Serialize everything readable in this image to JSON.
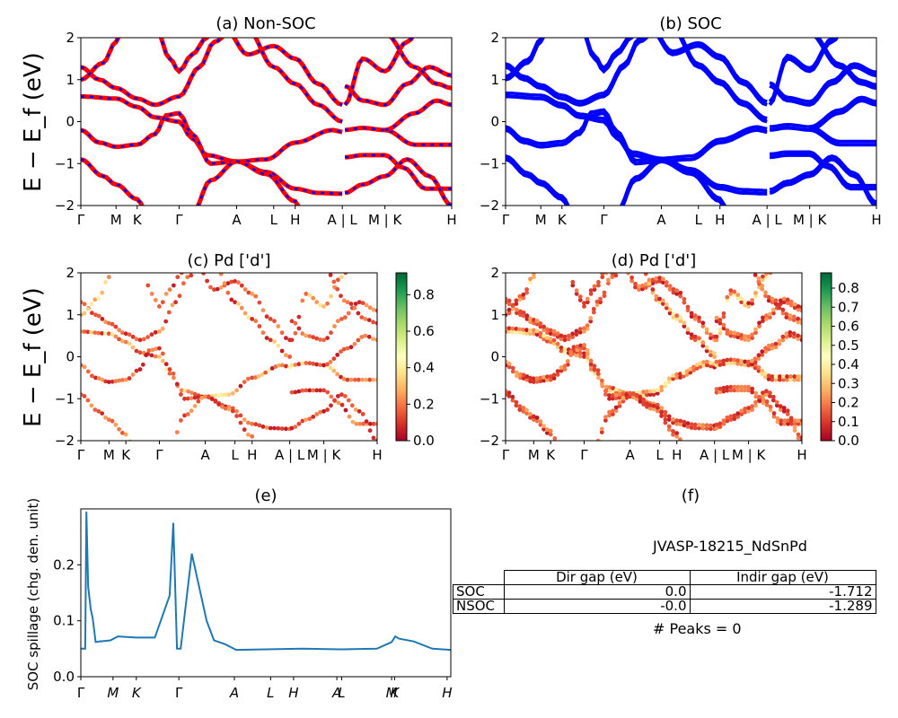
{
  "panels": {
    "a": {
      "title": "(a) Non-SOC"
    },
    "b": {
      "title": "(b) SOC"
    },
    "c": {
      "title": "(c)  Pd ['d']"
    },
    "d": {
      "title": "(d) Pd ['d']"
    },
    "e": {
      "title": "(e)"
    },
    "f": {
      "title": "(f)"
    }
  },
  "band_axis": {
    "ylabel": "E − E_f (eV)",
    "ylim": [
      -2,
      2
    ],
    "yticks": [
      "2",
      "1",
      "0",
      "−1",
      "−2"
    ],
    "kticks": [
      "Γ",
      "M",
      "K",
      "Γ",
      "A",
      "L",
      "H",
      "A | L",
      "M | K",
      "H"
    ]
  },
  "colorbars": {
    "c": {
      "ticks": [
        "0.8",
        "0.6",
        "0.4",
        "0.2",
        "0.0"
      ],
      "range": [
        0,
        0.92
      ]
    },
    "d": {
      "ticks": [
        "0.8",
        "0.7",
        "0.6",
        "0.5",
        "0.4",
        "0.3",
        "0.2",
        "0.1",
        "0.0"
      ],
      "range": [
        0,
        0.88
      ]
    }
  },
  "spillage": {
    "ylabel": "SOC spillage (chg. den. unit)",
    "yticks": [
      "0.2",
      "0.1",
      "0.0"
    ],
    "kticks": [
      "Γ",
      "M",
      "K",
      "Γ",
      "A",
      "L",
      "H",
      "A",
      "L",
      "M",
      "K",
      "H"
    ]
  },
  "info": {
    "jid": "JVASP-18215_NdSnPd",
    "headers": [
      "Dir gap (eV)",
      "Indir gap (eV)"
    ],
    "rows": [
      {
        "label": "SOC",
        "dir": "0.0",
        "indir": "-1.712"
      },
      {
        "label": "NSOC",
        "dir": "-0.0",
        "indir": "-1.289"
      }
    ],
    "peaks": "# Peaks = 0"
  },
  "colors": {
    "nonsoc_a": "#ff0000",
    "nonsoc_b": "#0000ff",
    "soc": "#0000ff",
    "spillage": "#1f77b4"
  },
  "chart_data": [
    {
      "type": "line",
      "title": "(a) Non-SOC",
      "xlabel": "",
      "ylabel": "E − E_f (eV)",
      "ylim": [
        -2,
        2
      ],
      "x_ticks": [
        "Γ",
        "M",
        "K",
        "Γ",
        "A",
        "L",
        "H",
        "A | L",
        "M | K",
        "H"
      ],
      "series": [
        {
          "values": [
            1.3,
            0.8,
            0.55,
            0.6,
            1.9,
            1.5,
            0.9,
            0.4,
            0.9,
            0.55
          ]
        },
        {
          "values": [
            0.6,
            0.55,
            0.35,
            0.0,
            -0.95,
            -0.9,
            -0.5,
            -0.2,
            -0.15,
            0.2
          ]
        },
        {
          "values": [
            -0.2,
            -0.6,
            -0.55,
            0.2,
            -0.95,
            -1.3,
            -1.6,
            -1.7,
            -1.55,
            -1.6
          ]
        }
      ]
    },
    {
      "type": "line",
      "title": "(b) SOC",
      "xlabel": "",
      "ylabel": "",
      "ylim": [
        -2,
        2
      ],
      "x_ticks": [
        "Γ",
        "M",
        "K",
        "Γ",
        "A",
        "L",
        "H",
        "A | L",
        "M | K",
        "H"
      ],
      "series": [
        {
          "values": [
            1.3,
            0.8,
            0.55,
            0.6,
            1.9,
            1.5,
            0.9,
            0.4,
            0.9,
            0.55
          ]
        },
        {
          "values": [
            0.6,
            0.55,
            0.35,
            0.0,
            -0.95,
            -0.9,
            -0.5,
            -0.2,
            -0.15,
            0.2
          ]
        },
        {
          "values": [
            -0.2,
            -0.6,
            -0.55,
            0.2,
            -0.95,
            -1.3,
            -1.6,
            -1.7,
            -1.55,
            -1.6
          ]
        }
      ]
    },
    {
      "type": "line",
      "title": "(e)",
      "ylabel": "SOC spillage (chg. den. unit)",
      "ylim": [
        0,
        0.3
      ],
      "x_ticks": [
        "Γ",
        "M",
        "K",
        "Γ",
        "A",
        "L",
        "H",
        "A",
        "L",
        "M",
        "K",
        "H"
      ],
      "x": [
        0.0,
        0.012,
        0.015,
        0.02,
        0.027,
        0.032,
        0.04,
        0.05,
        0.08,
        0.1,
        0.15,
        0.2,
        0.24,
        0.25,
        0.26,
        0.27,
        0.3,
        0.34,
        0.36,
        0.39,
        0.42,
        0.5,
        0.6,
        0.7,
        0.8,
        0.84,
        0.85,
        0.86,
        0.9,
        0.95,
        1.0
      ],
      "values": [
        0.05,
        0.05,
        0.295,
        0.16,
        0.12,
        0.105,
        0.062,
        0.063,
        0.065,
        0.072,
        0.07,
        0.07,
        0.145,
        0.275,
        0.05,
        0.05,
        0.22,
        0.1,
        0.065,
        0.058,
        0.048,
        0.049,
        0.05,
        0.049,
        0.05,
        0.062,
        0.072,
        0.068,
        0.063,
        0.05,
        0.048
      ]
    }
  ]
}
